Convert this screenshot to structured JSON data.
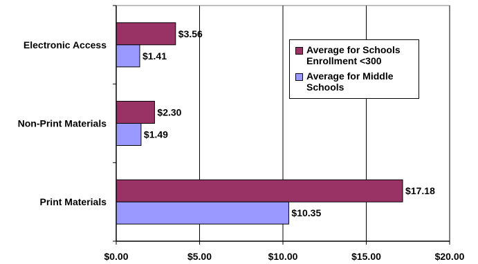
{
  "chart_data": {
    "type": "bar",
    "orientation": "horizontal",
    "categories": [
      "Electronic Access",
      "Non-Print Materials",
      "Print Materials"
    ],
    "series": [
      {
        "name": "Average for Schools Enrollment <300",
        "values": [
          3.56,
          2.3,
          17.18
        ],
        "labels": [
          "$3.56",
          "$2.30",
          "$17.18"
        ],
        "color": "#993366"
      },
      {
        "name": "Average for Middle Schools",
        "values": [
          1.41,
          1.49,
          10.35
        ],
        "labels": [
          "$1.41",
          "$1.49",
          "$10.35"
        ],
        "color": "#9999ff"
      }
    ],
    "xlim": [
      0,
      20
    ],
    "x_ticks": [
      0,
      5,
      10,
      15,
      20
    ],
    "x_tick_labels": [
      "$0.00",
      "$5.00",
      "$10.00",
      "$15.00",
      "$20.00"
    ],
    "grid": "vertical",
    "legend_position": "top-right",
    "title": "",
    "xlabel": "",
    "ylabel": ""
  }
}
